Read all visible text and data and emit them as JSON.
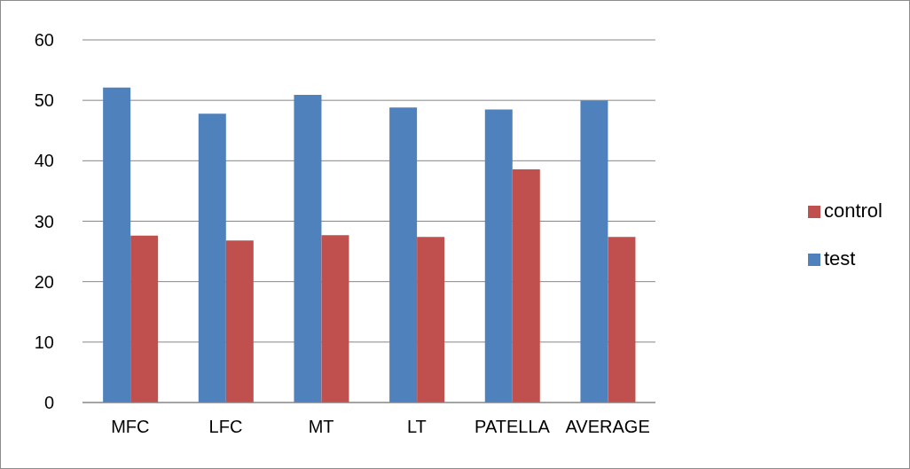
{
  "chart_data": {
    "type": "bar",
    "categories": [
      "MFC",
      "LFC",
      "MT",
      "LT",
      "PATELLA",
      "AVERAGE"
    ],
    "series": [
      {
        "name": "test",
        "color": "#4f81bd",
        "values": [
          52.1,
          47.8,
          50.9,
          48.8,
          48.5,
          50.0
        ]
      },
      {
        "name": "control",
        "color": "#c0504d",
        "values": [
          27.6,
          26.8,
          27.7,
          27.4,
          38.6,
          27.4
        ]
      }
    ],
    "ylim": [
      0,
      60
    ],
    "yticks": [
      0,
      10,
      20,
      30,
      40,
      50,
      60
    ],
    "grid": "y",
    "legend": "right"
  }
}
